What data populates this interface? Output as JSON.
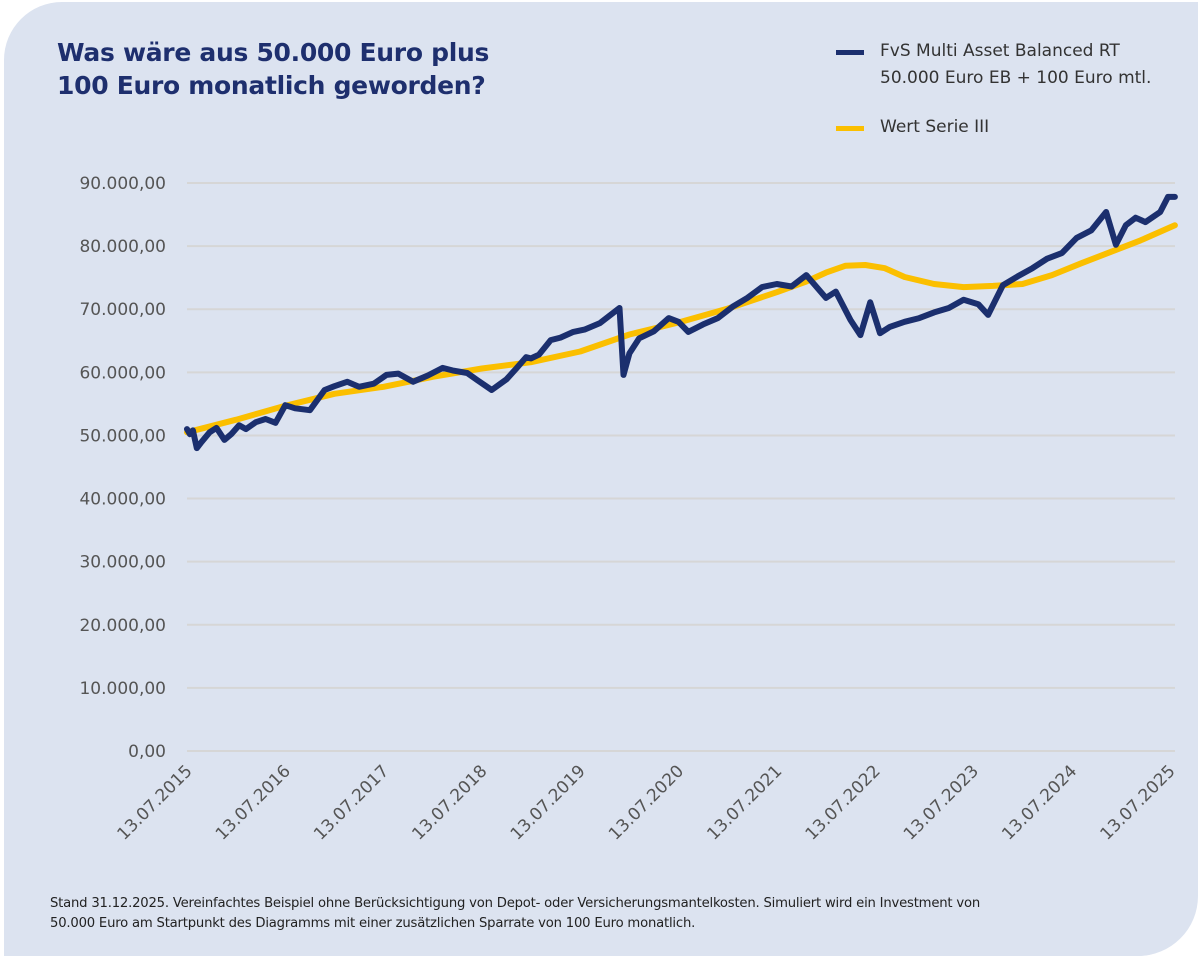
{
  "colors": {
    "background": "#dce3f0",
    "title": "#1e2f6e",
    "fvs_series": "#1b2f6e",
    "wert_series": "#fbbf00",
    "gridline": "#d6d6d6",
    "tick_text": "#555555"
  },
  "title_lines": [
    "Was wäre aus 50.000 Euro plus",
    "100 Euro monatlich geworden?"
  ],
  "legend": [
    {
      "lines": [
        "FvS Multi Asset Balanced RT",
        "50.000 Euro EB + 100 Euro mtl."
      ],
      "color": "#1b2f6e"
    },
    {
      "lines": [
        "Wert Serie III"
      ],
      "color": "#fbbf00"
    }
  ],
  "footnote_lines": [
    "Stand 31.12.2025. Vereinfachtes Beispiel ohne Berücksichtigung von Depot- oder Versicherungsmantelkosten. Simuliert wird ein Investment von",
    "50.000 Euro am Startpunkt des Diagramms mit einer zusätzlichen Sparrate von 100 Euro monatlich."
  ],
  "chart_data": {
    "type": "line",
    "title": "Was wäre aus 50.000 Euro plus 100 Euro monatlich geworden?",
    "xlabel": "",
    "ylabel": "",
    "x_unit": "years since 13.07.2015",
    "xlim": [
      0,
      10.05
    ],
    "ylim": [
      0,
      90000
    ],
    "grid": true,
    "legend_position": "top-right",
    "y_ticks": [
      0,
      10000,
      20000,
      30000,
      40000,
      50000,
      60000,
      70000,
      80000,
      90000
    ],
    "y_tick_labels": [
      "0,00",
      "10.000,00",
      "20.000,00",
      "30.000,00",
      "40.000,00",
      "50.000,00",
      "60.000,00",
      "70.000,00",
      "80.000,00",
      "90.000,00"
    ],
    "x_ticks": [
      0,
      1,
      2,
      3,
      4,
      5,
      6,
      7,
      8,
      9,
      10
    ],
    "x_tick_labels": [
      "13.07.2015",
      "13.07.2016",
      "13.07.2017",
      "13.07.2018",
      "13.07.2019",
      "13.07.2020",
      "13.07.2021",
      "13.07.2022",
      "13.07.2023",
      "13.07.2024",
      "13.07.2025"
    ],
    "series": [
      {
        "name": "FvS Multi Asset Balanced RT 50.000 Euro EB + 100 Euro mtl.",
        "color": "#1b2f6e",
        "x": [
          0,
          0.03,
          0.06,
          0.1,
          0.15,
          0.23,
          0.3,
          0.38,
          0.45,
          0.53,
          0.6,
          0.7,
          0.8,
          0.9,
          1.0,
          1.1,
          1.25,
          1.4,
          1.5,
          1.63,
          1.75,
          1.9,
          2.03,
          2.15,
          2.3,
          2.45,
          2.6,
          2.7,
          2.85,
          2.95,
          3.1,
          3.25,
          3.35,
          3.45,
          3.5,
          3.58,
          3.7,
          3.8,
          3.93,
          4.05,
          4.2,
          4.35,
          4.5,
          4.6,
          4.43,
          4.44
        ],
        "y": [
          51000,
          50200,
          50800,
          48000,
          49000,
          50500,
          51200,
          49300,
          50200,
          51600,
          51000,
          52100,
          52600,
          52000,
          54800,
          54300,
          54000,
          57200,
          57800,
          58500,
          57700,
          58200,
          59600,
          59800,
          58500,
          59500,
          60700,
          60300,
          59900,
          58800,
          57200,
          58900,
          60600,
          62400,
          62200,
          62800,
          65100,
          65500,
          66400,
          66800,
          67800,
          70200,
          59600,
          63000,
          59600,
          59600
        ]
      },
      {
        "name": "Wert Serie III",
        "color": "#fbbf00",
        "x": [
          0,
          0.5,
          1,
          1.5,
          2,
          2.5,
          3,
          3.5,
          4,
          4.5,
          5,
          5.5,
          6,
          6.3,
          6.5,
          6.7,
          6.9,
          7.1,
          7.3,
          7.6,
          7.9,
          8.2,
          8.5,
          8.8,
          9.1,
          9.4,
          9.7,
          10.05
        ],
        "y": [
          50500,
          52500,
          54700,
          56600,
          57700,
          59300,
          60600,
          61600,
          63300,
          66000,
          67900,
          70100,
          72700,
          74400,
          75800,
          76900,
          77000,
          76500,
          75100,
          74000,
          73500,
          73700,
          74000,
          75400,
          77300,
          79100,
          80900,
          83300
        ]
      }
    ]
  }
}
